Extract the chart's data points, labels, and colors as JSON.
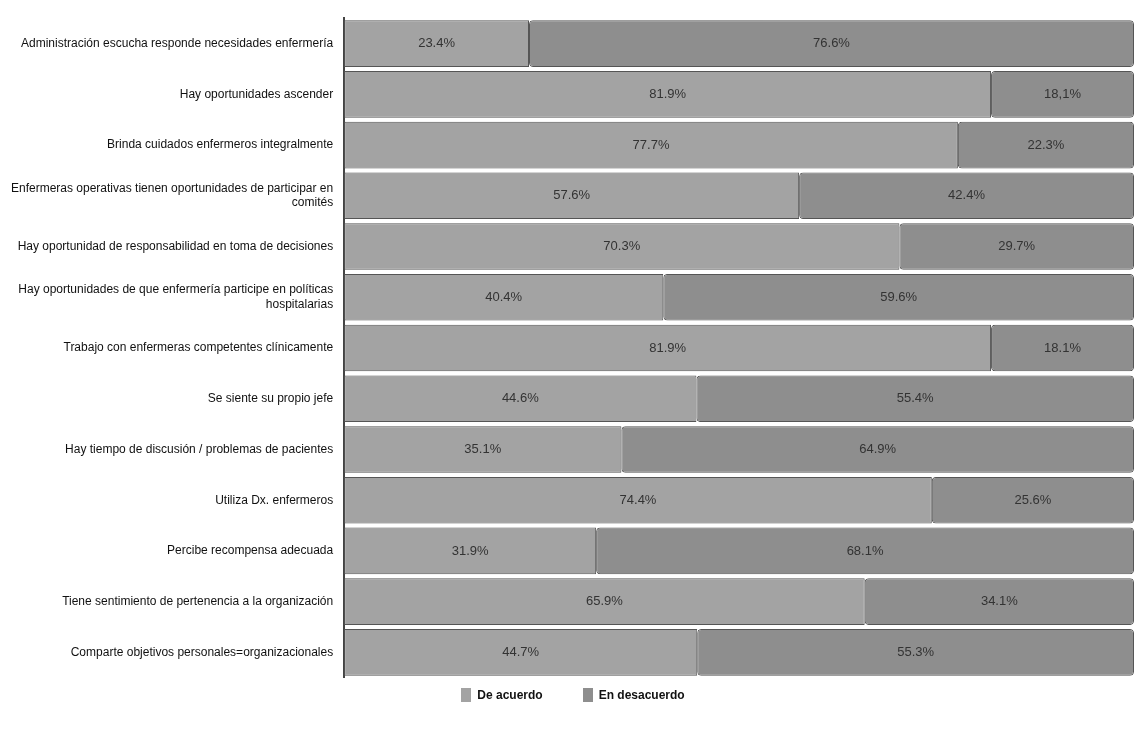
{
  "chart_data": {
    "type": "bar",
    "orientation": "horizontal",
    "stacked": true,
    "legend": "bottom",
    "categories": [
      "Administración escucha responde necesidades enfermería",
      "Hay oportunidades ascender",
      "Brinda cuidados enfermeros integralmente",
      "Enfermeras operativas tienen oportunidades de participar en comités",
      "Hay oportunidad de responsabilidad en toma de decisiones",
      "Hay oportunidades de que enfermería participe en políticas hospitalarias",
      "Trabajo con enfermeras competentes clínicamente",
      "Se siente su propio jefe",
      "Hay tiempo de discusión / problemas de pacientes",
      "Utiliza Dx. enfermeros",
      "Percibe recompensa adecuada",
      "Tiene sentimiento de pertenencia a la organización",
      "Comparte objetivos personales=organizacionales"
    ],
    "series": [
      {
        "name": "De acuerdo",
        "color": "#a3a3a3",
        "values": [
          23.4,
          81.9,
          77.7,
          57.6,
          70.3,
          40.4,
          81.9,
          44.6,
          35.1,
          74.4,
          31.9,
          65.9,
          44.7
        ],
        "value_labels": [
          "23.4%",
          "81.9%",
          "77.7%",
          "57.6%",
          "70.3%",
          "40.4%",
          "81.9%",
          "44.6%",
          "35.1%",
          "74.4%",
          "31.9%",
          "65.9%",
          "44.7%"
        ]
      },
      {
        "name": "En desacuerdo",
        "color": "#8e8e8e",
        "values": [
          76.6,
          18.1,
          22.3,
          42.4,
          29.7,
          59.6,
          18.1,
          55.4,
          64.9,
          25.6,
          68.1,
          34.1,
          55.3
        ],
        "value_labels": [
          "76.6%",
          "18,1%",
          "22.3%",
          "42.4%",
          "29.7%",
          "59.6%",
          "18.1%",
          "55.4%",
          "64.9%",
          "25.6%",
          "68.1%",
          "34.1%",
          "55.3%"
        ]
      }
    ]
  }
}
